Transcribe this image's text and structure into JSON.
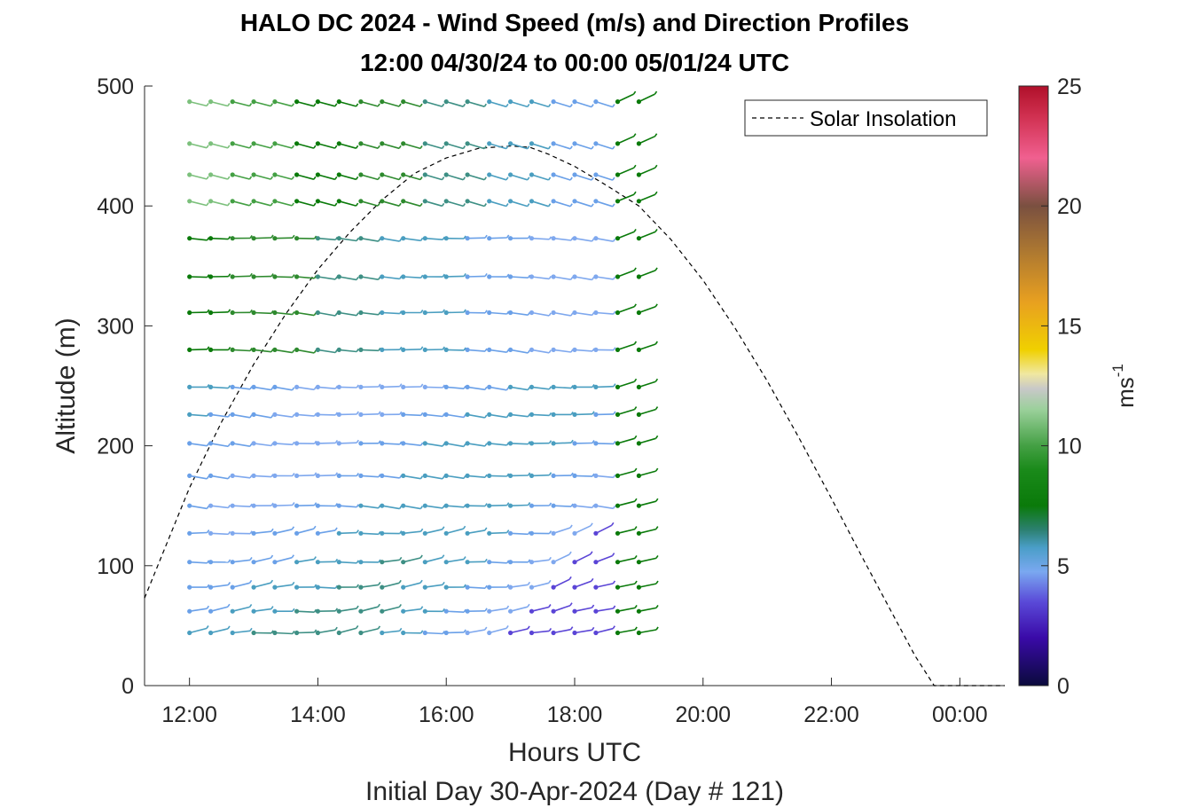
{
  "chart_data": {
    "type": "barb-profile",
    "title": "HALO DC 2024 - Wind Speed (m/s) and Direction Profiles",
    "subtitle": "12:00 04/30/24 to 00:00 05/01/24  UTC",
    "xlabel": "Hours UTC",
    "xlabel2": "Initial Day 30-Apr-2024 (Day # 121)",
    "ylabel": "Altitude (m)",
    "x_ticks": [
      "12:00",
      "14:00",
      "16:00",
      "18:00",
      "20:00",
      "22:00",
      "00:00"
    ],
    "x_tick_hours": [
      12,
      14,
      16,
      18,
      20,
      22,
      24
    ],
    "xlim_hours": [
      11.3,
      24.7
    ],
    "y_ticks": [
      0,
      100,
      200,
      300,
      400,
      500
    ],
    "ylim": [
      0,
      500
    ],
    "colorbar": {
      "label": "ms",
      "label_exponent": "-1",
      "ticks": [
        0,
        5,
        10,
        15,
        20,
        25
      ],
      "range": [
        0,
        25
      ]
    },
    "legend": {
      "entries": [
        "Solar Insolation"
      ],
      "placement": "top-right"
    },
    "barb_times_hours": [
      12.0,
      12.33,
      12.67,
      13.0,
      13.33,
      13.67,
      14.0,
      14.33,
      14.67,
      15.0,
      15.33,
      15.67,
      16.0,
      16.33,
      16.67,
      17.0,
      17.33,
      17.67,
      18.0,
      18.33,
      18.67,
      19.0
    ],
    "barb_altitudes_m": [
      487,
      452,
      426,
      404,
      373,
      341,
      311,
      280,
      249,
      226,
      202,
      175,
      150,
      127,
      103,
      82,
      62,
      44
    ],
    "solar_insolation": {
      "x_hours": [
        11.3,
        12.0,
        12.5,
        13.0,
        13.5,
        14.0,
        14.5,
        15.0,
        15.5,
        16.0,
        16.5,
        17.0,
        17.3,
        17.6,
        18.0,
        18.5,
        19.0,
        19.5,
        20.0,
        20.5,
        21.0,
        21.5,
        22.0,
        22.5,
        23.0,
        23.3,
        23.6,
        24.0,
        24.7
      ],
      "y_m": [
        73,
        165,
        220,
        268,
        310,
        347,
        378,
        405,
        427,
        440,
        448,
        450,
        449,
        443,
        433,
        417,
        400,
        372,
        338,
        298,
        254,
        206,
        156,
        105,
        55,
        25,
        0,
        0,
        0
      ]
    }
  }
}
